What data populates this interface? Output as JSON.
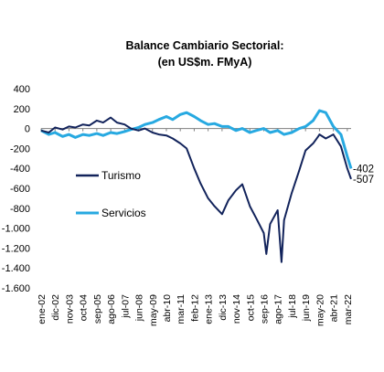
{
  "chart_data": {
    "type": "line",
    "title": "Balance Cambiario Sectorial:",
    "subtitle": "(en US$m. FMyA)",
    "xlabel": "",
    "ylabel": "",
    "ylim": [
      -1600,
      400
    ],
    "yticks": [
      400,
      200,
      0,
      -200,
      -400,
      -600,
      -800,
      -1000,
      -1200,
      -1400,
      -1600
    ],
    "ytick_labels": [
      "400",
      "200",
      "0",
      "-200",
      "-400",
      "-600",
      "-800",
      "-1.000",
      "-1.200",
      "-1.400",
      "-1.600"
    ],
    "xtick_labels": [
      "ene-02",
      "dic-02",
      "nov-03",
      "oct-04",
      "sep-05",
      "ago-06",
      "jul-07",
      "jun-08",
      "may-09",
      "abr-10",
      "mar-11",
      "feb-12",
      "ene-13",
      "dic-13",
      "nov-14",
      "oct-15",
      "sep-16",
      "ago-17",
      "jul-18",
      "jun-19",
      "may-20",
      "abr-21",
      "mar-22"
    ],
    "grid": false,
    "legend_position": "center-left",
    "colors": {
      "Turismo": "#12235b",
      "Servicios": "#27a9e1"
    },
    "series": [
      {
        "name": "Turismo",
        "end_label": "-507",
        "points": [
          [
            "ene-02",
            -20
          ],
          [
            "jul-02",
            -40
          ],
          [
            "dic-02",
            10
          ],
          [
            "jun-03",
            -10
          ],
          [
            "nov-03",
            20
          ],
          [
            "abr-04",
            10
          ],
          [
            "oct-04",
            40
          ],
          [
            "mar-05",
            30
          ],
          [
            "sep-05",
            80
          ],
          [
            "feb-06",
            60
          ],
          [
            "ago-06",
            110
          ],
          [
            "ene-07",
            60
          ],
          [
            "jul-07",
            40
          ],
          [
            "dic-07",
            0
          ],
          [
            "jun-08",
            -20
          ],
          [
            "nov-08",
            0
          ],
          [
            "may-09",
            -40
          ],
          [
            "oct-09",
            -60
          ],
          [
            "abr-10",
            -70
          ],
          [
            "sep-10",
            -100
          ],
          [
            "mar-11",
            -150
          ],
          [
            "ago-11",
            -200
          ],
          [
            "feb-12",
            -400
          ],
          [
            "jul-12",
            -550
          ],
          [
            "ene-13",
            -700
          ],
          [
            "jun-13",
            -780
          ],
          [
            "dic-13",
            -860
          ],
          [
            "may-14",
            -720
          ],
          [
            "nov-14",
            -620
          ],
          [
            "abr-15",
            -560
          ],
          [
            "oct-15",
            -780
          ],
          [
            "mar-16",
            -900
          ],
          [
            "sep-16",
            -1050
          ],
          [
            "nov-16",
            -1260
          ],
          [
            "feb-17",
            -960
          ],
          [
            "ago-17",
            -820
          ],
          [
            "nov-17",
            -1340
          ],
          [
            "ene-18",
            -920
          ],
          [
            "jul-18",
            -650
          ],
          [
            "ene-19",
            -420
          ],
          [
            "jun-19",
            -220
          ],
          [
            "dic-19",
            -150
          ],
          [
            "abr-20",
            -80
          ],
          [
            "may-20",
            -60
          ],
          [
            "oct-20",
            -100
          ],
          [
            "abr-21",
            -60
          ],
          [
            "oct-21",
            -180
          ],
          [
            "mar-22",
            -400
          ],
          [
            "jun-22",
            -507
          ]
        ]
      },
      {
        "name": "Servicios",
        "end_label": "-402",
        "points": [
          [
            "ene-02",
            -20
          ],
          [
            "jul-02",
            -60
          ],
          [
            "dic-02",
            -40
          ],
          [
            "jun-03",
            -80
          ],
          [
            "nov-03",
            -60
          ],
          [
            "abr-04",
            -90
          ],
          [
            "oct-04",
            -60
          ],
          [
            "mar-05",
            -70
          ],
          [
            "sep-05",
            -50
          ],
          [
            "feb-06",
            -70
          ],
          [
            "ago-06",
            -40
          ],
          [
            "ene-07",
            -50
          ],
          [
            "jul-07",
            -30
          ],
          [
            "dic-07",
            -10
          ],
          [
            "jun-08",
            10
          ],
          [
            "nov-08",
            40
          ],
          [
            "may-09",
            60
          ],
          [
            "oct-09",
            90
          ],
          [
            "abr-10",
            120
          ],
          [
            "sep-10",
            90
          ],
          [
            "mar-11",
            140
          ],
          [
            "ago-11",
            160
          ],
          [
            "feb-12",
            120
          ],
          [
            "jul-12",
            80
          ],
          [
            "ene-13",
            40
          ],
          [
            "jun-13",
            50
          ],
          [
            "dic-13",
            20
          ],
          [
            "may-14",
            20
          ],
          [
            "nov-14",
            -20
          ],
          [
            "abr-15",
            0
          ],
          [
            "oct-15",
            -40
          ],
          [
            "mar-16",
            -20
          ],
          [
            "sep-16",
            0
          ],
          [
            "feb-17",
            -40
          ],
          [
            "ago-17",
            -20
          ],
          [
            "ene-18",
            -60
          ],
          [
            "jul-18",
            -40
          ],
          [
            "ene-19",
            0
          ],
          [
            "jun-19",
            20
          ],
          [
            "dic-19",
            80
          ],
          [
            "may-20",
            180
          ],
          [
            "oct-20",
            160
          ],
          [
            "abr-21",
            20
          ],
          [
            "oct-21",
            -60
          ],
          [
            "mar-22",
            -280
          ],
          [
            "jun-22",
            -402
          ]
        ]
      }
    ]
  }
}
